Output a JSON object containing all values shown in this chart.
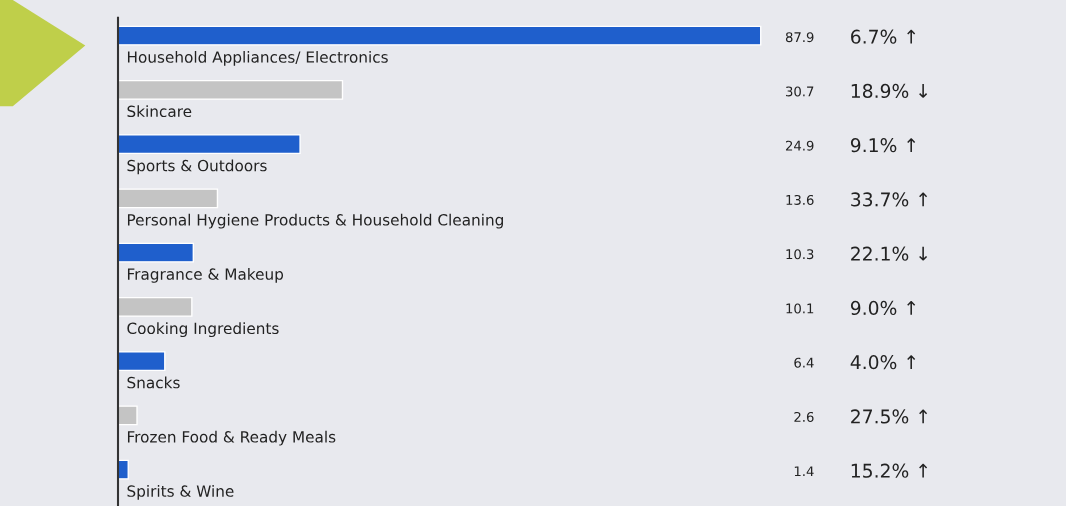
{
  "chart_data": {
    "type": "bar",
    "orientation": "horizontal",
    "categories": [
      "Household Appliances/ Electronics",
      "Skincare",
      "Sports & Outdoors",
      "Personal Hygiene Products & Household Cleaning",
      "Fragrance & Makeup",
      "Cooking Ingredients",
      "Snacks",
      "Frozen Food & Ready Meals",
      "Spirits & Wine"
    ],
    "values": [
      87.9,
      30.7,
      24.9,
      13.6,
      10.3,
      10.1,
      6.4,
      2.6,
      1.4
    ],
    "colors": [
      "#1f5fcc",
      "#c4c4c4",
      "#1f5fcc",
      "#c4c4c4",
      "#1f5fcc",
      "#c4c4c4",
      "#1f5fcc",
      "#c4c4c4",
      "#1f5fcc"
    ],
    "data_labels": true,
    "annotations": [
      "6.7% ↑",
      "18.9% ↓",
      "9.1% ↑",
      "33.7% ↑",
      "22.1% ↓",
      "9.0% ↑",
      "4.0% ↑",
      "27.5% ↑",
      "15.2% ↑"
    ],
    "legend": false
  }
}
